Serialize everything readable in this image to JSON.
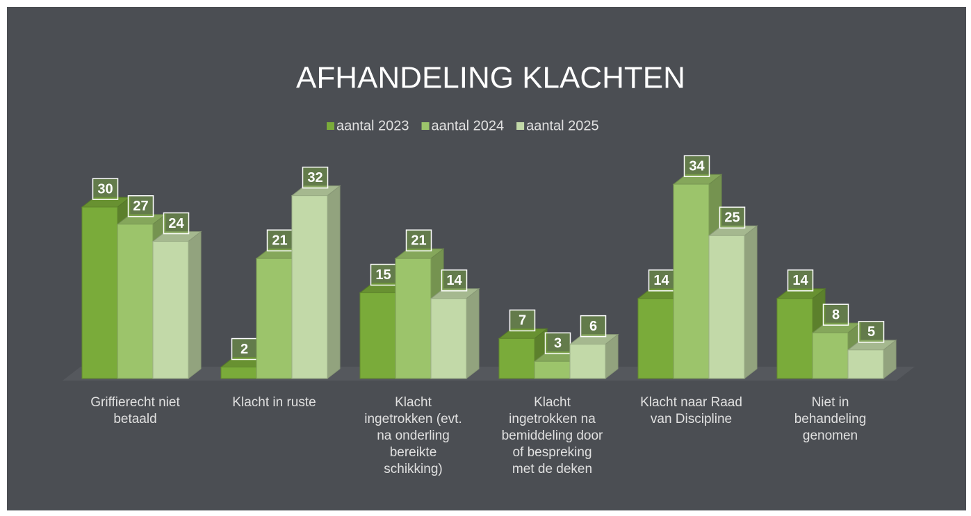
{
  "chart_data": {
    "type": "bar3d",
    "title": "AFHANDELING KLACHTEN",
    "categories": [
      "Griffierecht niet betaald",
      "Klacht in ruste",
      "Klacht ingetrokken (evt. na onderling bereikte schikking)",
      "Klacht ingetrokken na bemiddeling door of bespreking met de deken",
      "Klacht naar Raad van Discipline",
      "Niet in behandeling genomen"
    ],
    "series": [
      {
        "name": "aantal 2023",
        "color": "#7aab3a",
        "values": [
          30,
          2,
          15,
          7,
          14,
          14
        ]
      },
      {
        "name": "aantal 2024",
        "color": "#9cc46b",
        "values": [
          27,
          21,
          21,
          3,
          34,
          8
        ]
      },
      {
        "name": "aantal 2025",
        "color": "#c2d9a8",
        "values": [
          24,
          32,
          14,
          6,
          25,
          5
        ]
      }
    ],
    "ylim": [
      0,
      35
    ],
    "legend": "top"
  }
}
